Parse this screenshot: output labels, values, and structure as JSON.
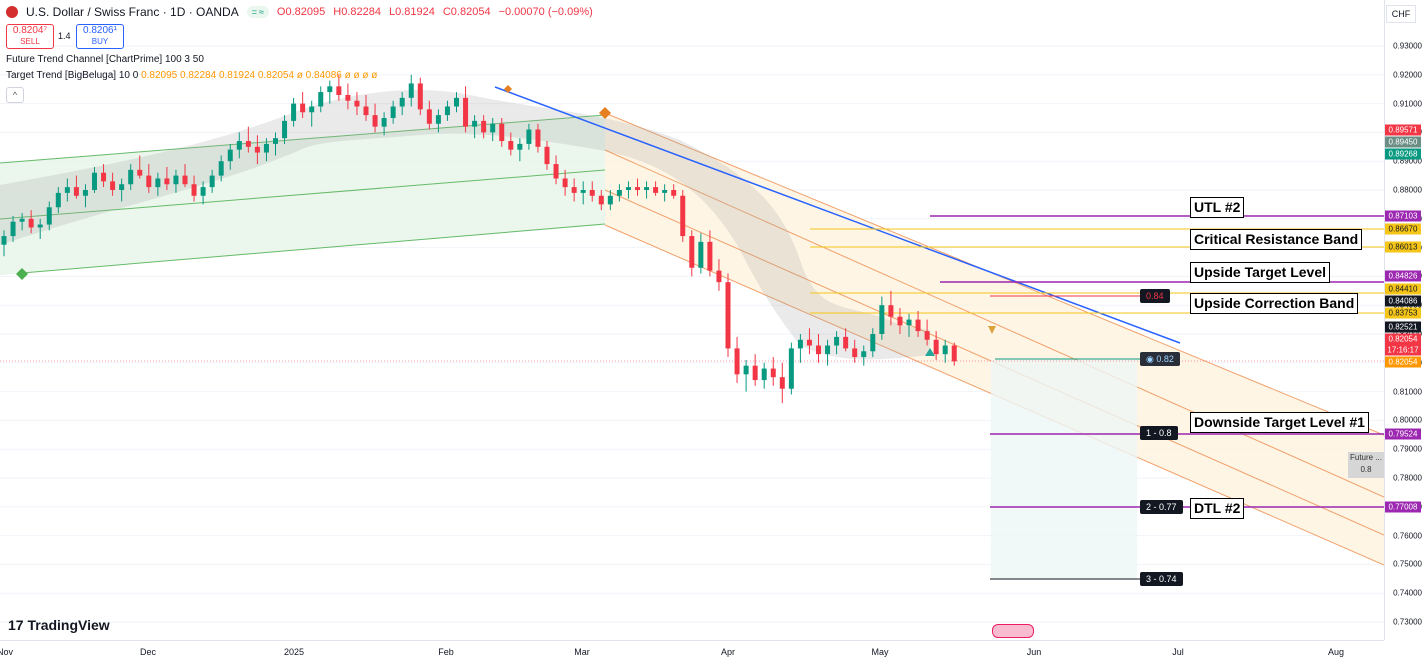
{
  "header": {
    "title": "U.S. Dollar / Swiss Franc · 1D · OANDA",
    "open": "O0.82095",
    "high": "H0.82284",
    "low": "L0.81924",
    "close": "C0.82054",
    "change": "−0.00070 (−0.09%)",
    "pill_a": "=",
    "pill_b": "≈"
  },
  "trade": {
    "sell_price": "0.8204⁷",
    "sell_label": "SELL",
    "spread": "1.4",
    "buy_price": "0.8206¹",
    "buy_label": "BUY"
  },
  "indicators": {
    "ind1": "Future Trend Channel [ChartPrime] 100 3 50",
    "ind2_name": "Target Trend [BigBeluga] 10 0",
    "ind2_values": "0.82095  0.82284  0.81924  0.82054  ø 0.84086  ø  ø  ø  ø",
    "collapse_icon": "^"
  },
  "currency": "CHF",
  "price_ticks": [
    "0.93000",
    "0.92000",
    "0.91000",
    "0.90000",
    "0.89000",
    "0.88000",
    "0.87000",
    "0.86000",
    "0.85000",
    "0.84000",
    "0.83000",
    "0.82000",
    "0.81000",
    "0.80000",
    "0.79000",
    "0.78000",
    "0.77000",
    "0.76000",
    "0.75000",
    "0.74000",
    "0.73000"
  ],
  "price_labels": [
    {
      "text": "0.89571",
      "color": "#f23645"
    },
    {
      "text": "0.89450",
      "color": "#6a8e84"
    },
    {
      "text": "0.89268",
      "color": "#089981"
    },
    {
      "text": "0.87103",
      "color": "#9c27b0"
    },
    {
      "text": "0.86670",
      "color": "#f5c518"
    },
    {
      "text": "0.86013",
      "color": "#f5c518"
    },
    {
      "text": "0.84826",
      "color": "#9c27b0"
    },
    {
      "text": "0.84410",
      "color": "#f5c518"
    },
    {
      "text": "0.84086",
      "color": "#131722"
    },
    {
      "text": "0.83753",
      "color": "#f5c518"
    },
    {
      "text": "0.82521",
      "color": "#131722"
    },
    {
      "text": "0.82054",
      "color": "#f23645"
    },
    {
      "text": "17:16:17",
      "color": "#f23645"
    },
    {
      "text": "0.82054",
      "color": "#ff9800"
    },
    {
      "text": "0.79524",
      "color": "#9c27b0"
    },
    {
      "text": "0.77008",
      "color": "#9c27b0"
    }
  ],
  "time_ticks": [
    "Nov",
    "Dec",
    "2025",
    "Feb",
    "Mar",
    "Apr",
    "May",
    "Jun",
    "Jul",
    "Aug"
  ],
  "annotations": {
    "utl2": "UTL #2",
    "crit": "Critical Resistance Band",
    "upside_target": "Upside Target Level",
    "upside_corr": "Upside Correction Band",
    "down_target": "Downside Target Level #1",
    "dtl2": "DTL #2"
  },
  "tags": {
    "t084": "0.84",
    "t082": "◉ 0.82",
    "t1": "1 - 0.8",
    "t2": "2 - 0.77",
    "t3": "3 - 0.74"
  },
  "future_box": "Future ... 0.8",
  "logo": "TradingView",
  "chart_data": {
    "type": "candlestick",
    "symbol": "USDCHF",
    "ylim": [
      0.73,
      0.935
    ],
    "levels": [
      0.87103,
      0.8667,
      0.86013,
      0.84826,
      0.8441,
      0.84086,
      0.83753,
      0.79524,
      0.77008,
      0.74
    ],
    "candles": [
      [
        0.861,
        0.866,
        0.857,
        0.864
      ],
      [
        0.864,
        0.871,
        0.862,
        0.869
      ],
      [
        0.869,
        0.872,
        0.866,
        0.87
      ],
      [
        0.87,
        0.873,
        0.865,
        0.867
      ],
      [
        0.867,
        0.87,
        0.863,
        0.868
      ],
      [
        0.868,
        0.876,
        0.866,
        0.874
      ],
      [
        0.874,
        0.881,
        0.872,
        0.879
      ],
      [
        0.879,
        0.884,
        0.876,
        0.881
      ],
      [
        0.881,
        0.885,
        0.877,
        0.878
      ],
      [
        0.878,
        0.882,
        0.874,
        0.88
      ],
      [
        0.88,
        0.888,
        0.879,
        0.886
      ],
      [
        0.886,
        0.889,
        0.881,
        0.883
      ],
      [
        0.883,
        0.886,
        0.878,
        0.88
      ],
      [
        0.88,
        0.884,
        0.876,
        0.882
      ],
      [
        0.882,
        0.889,
        0.88,
        0.887
      ],
      [
        0.887,
        0.892,
        0.884,
        0.885
      ],
      [
        0.885,
        0.889,
        0.879,
        0.881
      ],
      [
        0.881,
        0.886,
        0.878,
        0.884
      ],
      [
        0.884,
        0.888,
        0.88,
        0.882
      ],
      [
        0.882,
        0.887,
        0.879,
        0.885
      ],
      [
        0.885,
        0.889,
        0.881,
        0.882
      ],
      [
        0.882,
        0.885,
        0.876,
        0.878
      ],
      [
        0.878,
        0.883,
        0.875,
        0.881
      ],
      [
        0.881,
        0.887,
        0.879,
        0.885
      ],
      [
        0.885,
        0.892,
        0.883,
        0.89
      ],
      [
        0.89,
        0.896,
        0.887,
        0.894
      ],
      [
        0.894,
        0.9,
        0.891,
        0.897
      ],
      [
        0.897,
        0.902,
        0.893,
        0.895
      ],
      [
        0.895,
        0.899,
        0.889,
        0.893
      ],
      [
        0.893,
        0.898,
        0.89,
        0.896
      ],
      [
        0.896,
        0.9,
        0.892,
        0.898
      ],
      [
        0.898,
        0.906,
        0.896,
        0.904
      ],
      [
        0.904,
        0.912,
        0.902,
        0.91
      ],
      [
        0.91,
        0.914,
        0.905,
        0.907
      ],
      [
        0.907,
        0.911,
        0.902,
        0.909
      ],
      [
        0.909,
        0.916,
        0.907,
        0.914
      ],
      [
        0.914,
        0.918,
        0.91,
        0.916
      ],
      [
        0.916,
        0.92,
        0.911,
        0.913
      ],
      [
        0.913,
        0.917,
        0.908,
        0.911
      ],
      [
        0.911,
        0.914,
        0.906,
        0.909
      ],
      [
        0.909,
        0.913,
        0.904,
        0.906
      ],
      [
        0.906,
        0.91,
        0.9,
        0.902
      ],
      [
        0.902,
        0.907,
        0.899,
        0.905
      ],
      [
        0.905,
        0.911,
        0.903,
        0.909
      ],
      [
        0.909,
        0.914,
        0.906,
        0.912
      ],
      [
        0.912,
        0.92,
        0.909,
        0.917
      ],
      [
        0.917,
        0.919,
        0.906,
        0.908
      ],
      [
        0.908,
        0.911,
        0.901,
        0.903
      ],
      [
        0.903,
        0.908,
        0.9,
        0.906
      ],
      [
        0.906,
        0.911,
        0.904,
        0.909
      ],
      [
        0.909,
        0.914,
        0.907,
        0.912
      ],
      [
        0.912,
        0.916,
        0.9,
        0.902
      ],
      [
        0.902,
        0.906,
        0.898,
        0.904
      ],
      [
        0.904,
        0.906,
        0.898,
        0.9
      ],
      [
        0.9,
        0.905,
        0.897,
        0.903
      ],
      [
        0.903,
        0.905,
        0.895,
        0.897
      ],
      [
        0.897,
        0.9,
        0.892,
        0.894
      ],
      [
        0.894,
        0.898,
        0.89,
        0.896
      ],
      [
        0.896,
        0.903,
        0.894,
        0.901
      ],
      [
        0.901,
        0.903,
        0.893,
        0.895
      ],
      [
        0.895,
        0.897,
        0.887,
        0.889
      ],
      [
        0.889,
        0.892,
        0.882,
        0.884
      ],
      [
        0.884,
        0.887,
        0.878,
        0.881
      ],
      [
        0.881,
        0.884,
        0.876,
        0.879
      ],
      [
        0.879,
        0.883,
        0.875,
        0.88
      ],
      [
        0.88,
        0.883,
        0.876,
        0.878
      ],
      [
        0.878,
        0.88,
        0.873,
        0.875
      ],
      [
        0.875,
        0.88,
        0.873,
        0.878
      ],
      [
        0.878,
        0.882,
        0.876,
        0.88
      ],
      [
        0.88,
        0.883,
        0.877,
        0.881
      ],
      [
        0.881,
        0.884,
        0.878,
        0.88
      ],
      [
        0.88,
        0.883,
        0.877,
        0.881
      ],
      [
        0.881,
        0.883,
        0.878,
        0.879
      ],
      [
        0.879,
        0.882,
        0.876,
        0.88
      ],
      [
        0.88,
        0.882,
        0.877,
        0.878
      ],
      [
        0.878,
        0.88,
        0.862,
        0.864
      ],
      [
        0.864,
        0.866,
        0.85,
        0.853
      ],
      [
        0.853,
        0.865,
        0.851,
        0.862
      ],
      [
        0.862,
        0.866,
        0.85,
        0.852
      ],
      [
        0.852,
        0.856,
        0.845,
        0.848
      ],
      [
        0.848,
        0.851,
        0.822,
        0.825
      ],
      [
        0.825,
        0.829,
        0.813,
        0.816
      ],
      [
        0.816,
        0.821,
        0.81,
        0.819
      ],
      [
        0.819,
        0.823,
        0.812,
        0.814
      ],
      [
        0.814,
        0.82,
        0.811,
        0.818
      ],
      [
        0.818,
        0.822,
        0.812,
        0.815
      ],
      [
        0.815,
        0.82,
        0.806,
        0.811
      ],
      [
        0.811,
        0.827,
        0.809,
        0.825
      ],
      [
        0.825,
        0.83,
        0.82,
        0.828
      ],
      [
        0.828,
        0.832,
        0.823,
        0.826
      ],
      [
        0.826,
        0.83,
        0.82,
        0.823
      ],
      [
        0.823,
        0.828,
        0.819,
        0.826
      ],
      [
        0.826,
        0.831,
        0.823,
        0.829
      ],
      [
        0.829,
        0.832,
        0.824,
        0.825
      ],
      [
        0.825,
        0.828,
        0.82,
        0.822
      ],
      [
        0.822,
        0.826,
        0.819,
        0.824
      ],
      [
        0.824,
        0.832,
        0.822,
        0.83
      ],
      [
        0.83,
        0.843,
        0.828,
        0.84
      ],
      [
        0.84,
        0.845,
        0.833,
        0.836
      ],
      [
        0.836,
        0.839,
        0.83,
        0.833
      ],
      [
        0.833,
        0.837,
        0.829,
        0.835
      ],
      [
        0.835,
        0.838,
        0.829,
        0.831
      ],
      [
        0.831,
        0.835,
        0.826,
        0.828
      ],
      [
        0.828,
        0.831,
        0.821,
        0.823
      ],
      [
        0.823,
        0.828,
        0.82,
        0.826
      ],
      [
        0.826,
        0.827,
        0.819,
        0.8205
      ]
    ]
  }
}
